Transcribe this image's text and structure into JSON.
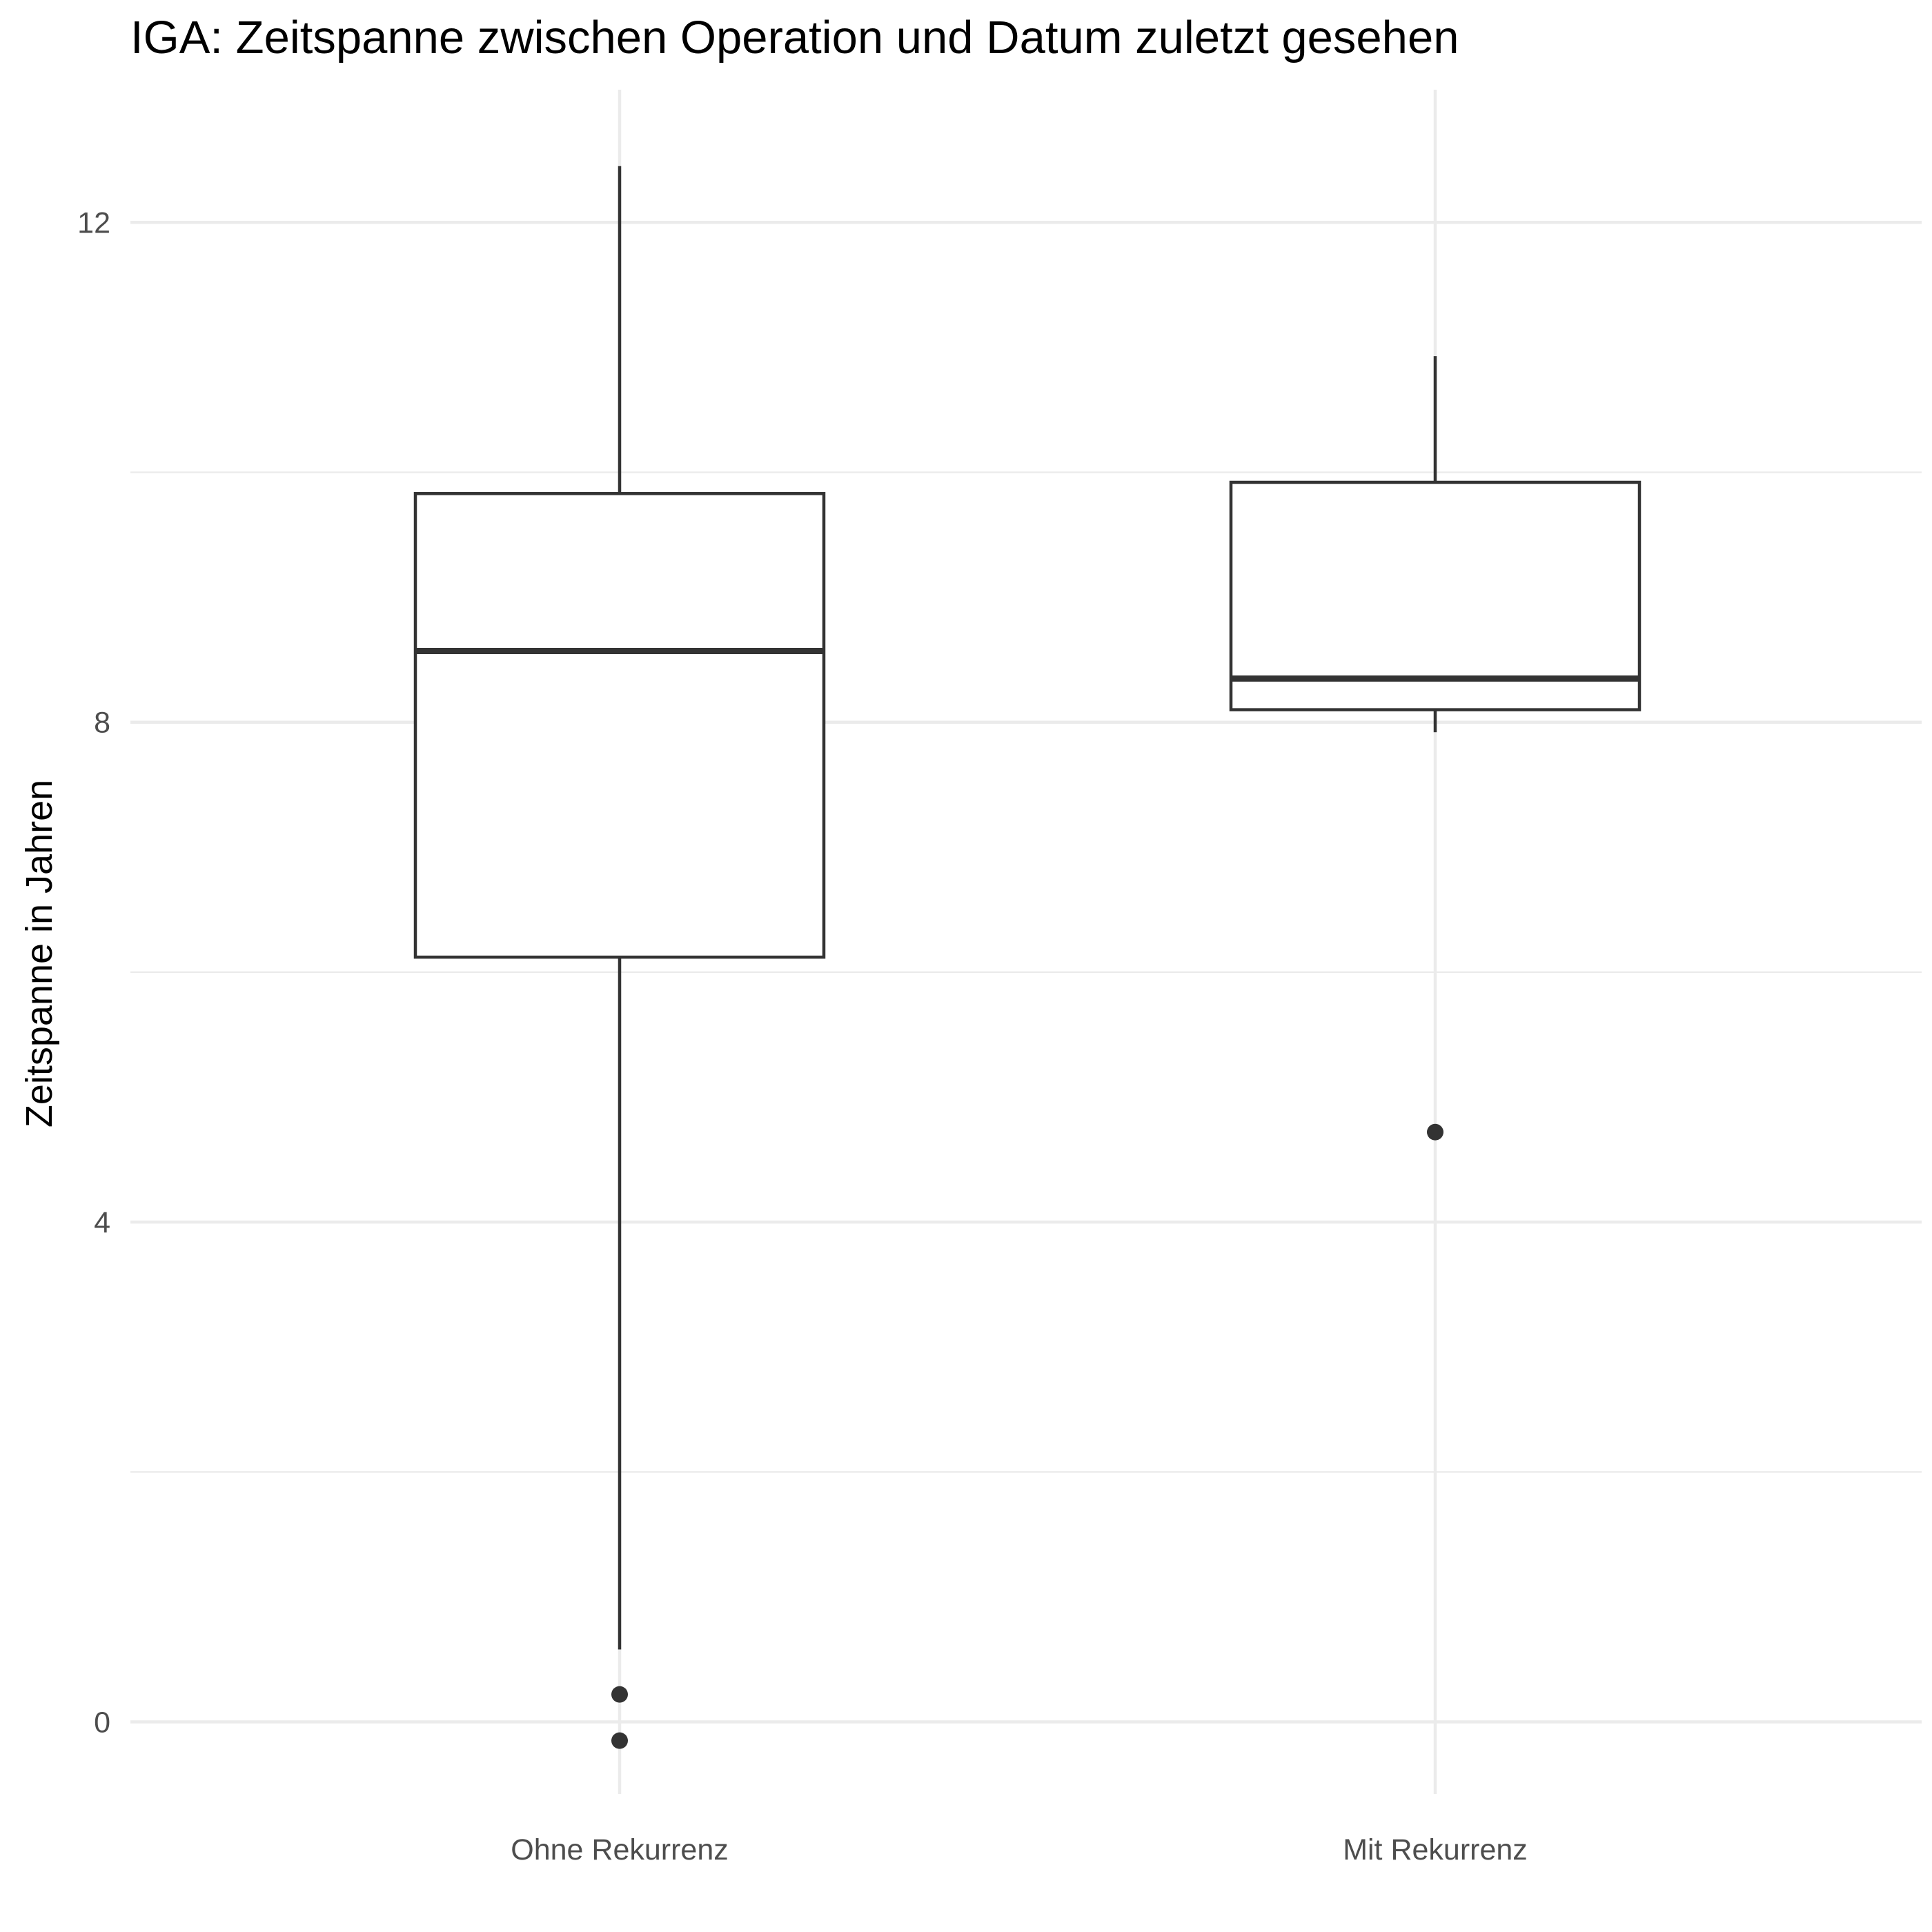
{
  "chart_data": {
    "type": "boxplot",
    "title": "IGA: Zeitspanne zwischen Operation und Datum zuletzt gesehen",
    "xlabel": "",
    "ylabel": "Zeitspanne in Jahren",
    "categories": [
      "Ohne Rekurrenz",
      "Mit Rekurrenz"
    ],
    "y_ticks": [
      0,
      4,
      8,
      12
    ],
    "y_tick_labels": [
      "0",
      "4",
      "8",
      "12"
    ],
    "y_minor_ticks": [
      2,
      6,
      10
    ],
    "ylim": [
      -0.75,
      13.05
    ],
    "grid": true,
    "boxes": [
      {
        "category": "Ohne Rekurrenz",
        "whisker_low": 0.58,
        "q1": 6.12,
        "median": 8.57,
        "q3": 9.83,
        "whisker_high": 12.45,
        "outliers": [
          0.22,
          -0.15
        ]
      },
      {
        "category": "Mit Rekurrenz",
        "whisker_low": 7.92,
        "q1": 8.1,
        "median": 8.35,
        "q3": 9.92,
        "whisker_high": 10.93,
        "outliers": [
          4.72
        ]
      }
    ]
  }
}
